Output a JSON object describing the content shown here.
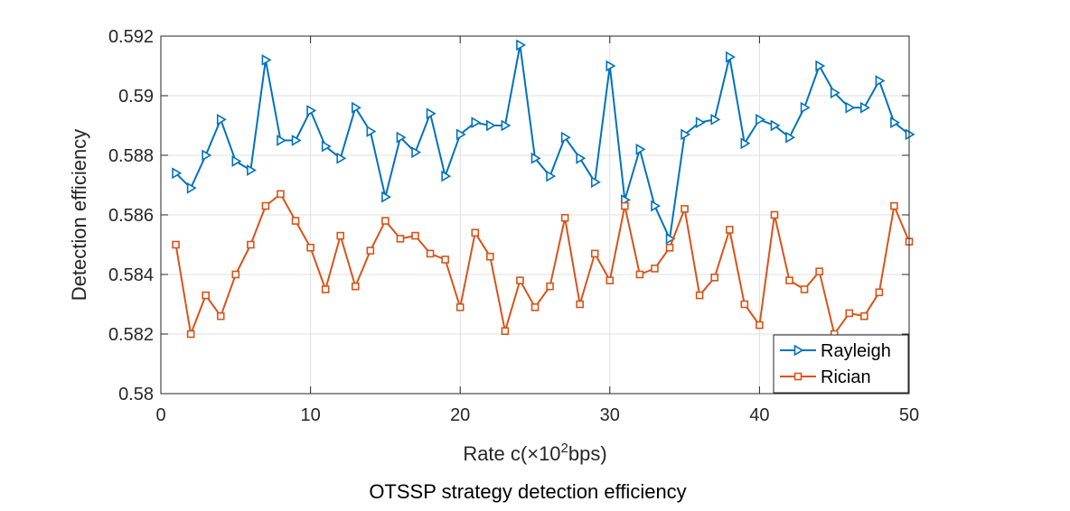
{
  "chart_data": {
    "type": "line",
    "title": "",
    "caption": "OTSSP strategy detection efficiency",
    "xlabel_main": "Rate c(×10",
    "xlabel_sup": "2",
    "xlabel_end": "bps)",
    "ylabel": "Detection efficiency",
    "xlim": [
      0,
      50
    ],
    "ylim": [
      0.58,
      0.592
    ],
    "xticks": [
      0,
      10,
      20,
      30,
      40,
      50
    ],
    "xtick_labels": [
      "0",
      "10",
      "20",
      "30",
      "40",
      "50"
    ],
    "yticks": [
      0.58,
      0.582,
      0.584,
      0.586,
      0.588,
      0.59,
      0.592
    ],
    "ytick_labels": [
      "0.58",
      "0.582",
      "0.584",
      "0.586",
      "0.588",
      "0.59",
      "0.592"
    ],
    "grid": true,
    "legend_position": "bottom-right",
    "x": [
      1,
      2,
      3,
      4,
      5,
      6,
      7,
      8,
      9,
      10,
      11,
      12,
      13,
      14,
      15,
      16,
      17,
      18,
      19,
      20,
      21,
      22,
      23,
      24,
      25,
      26,
      27,
      28,
      29,
      30,
      31,
      32,
      33,
      34,
      35,
      36,
      37,
      38,
      39,
      40,
      41,
      42,
      43,
      44,
      45,
      46,
      47,
      48,
      49,
      50
    ],
    "series": [
      {
        "name": "Rayleigh",
        "color": "#0072BD",
        "marker": "triangle-right",
        "values": [
          0.5874,
          0.5869,
          0.588,
          0.5892,
          0.5878,
          0.5875,
          0.5912,
          0.5885,
          0.5885,
          0.5895,
          0.5883,
          0.5879,
          0.5896,
          0.5888,
          0.5866,
          0.5886,
          0.5881,
          0.5894,
          0.5873,
          0.5887,
          0.5891,
          0.589,
          0.589,
          0.5917,
          0.5879,
          0.5873,
          0.5886,
          0.5879,
          0.5871,
          0.591,
          0.5865,
          0.5882,
          0.5863,
          0.5852,
          0.5887,
          0.5891,
          0.5892,
          0.5913,
          0.5884,
          0.5892,
          0.589,
          0.5886,
          0.5896,
          0.591,
          0.5901,
          0.5896,
          0.5896,
          0.5905,
          0.5891,
          0.5887
        ]
      },
      {
        "name": "Rician",
        "color": "#D95319",
        "marker": "square",
        "values": [
          0.585,
          0.582,
          0.5833,
          0.5826,
          0.584,
          0.585,
          0.5863,
          0.5867,
          0.5858,
          0.5849,
          0.5835,
          0.5853,
          0.5836,
          0.5848,
          0.5858,
          0.5852,
          0.5853,
          0.5847,
          0.5845,
          0.5829,
          0.5854,
          0.5846,
          0.5821,
          0.5838,
          0.5829,
          0.5836,
          0.5859,
          0.583,
          0.5847,
          0.5838,
          0.5863,
          0.584,
          0.5842,
          0.5849,
          0.5862,
          0.5833,
          0.5839,
          0.5855,
          0.583,
          0.5823,
          0.586,
          0.5838,
          0.5835,
          0.5841,
          0.582,
          0.5827,
          0.5826,
          0.5834,
          0.5863,
          0.5851
        ]
      }
    ]
  }
}
